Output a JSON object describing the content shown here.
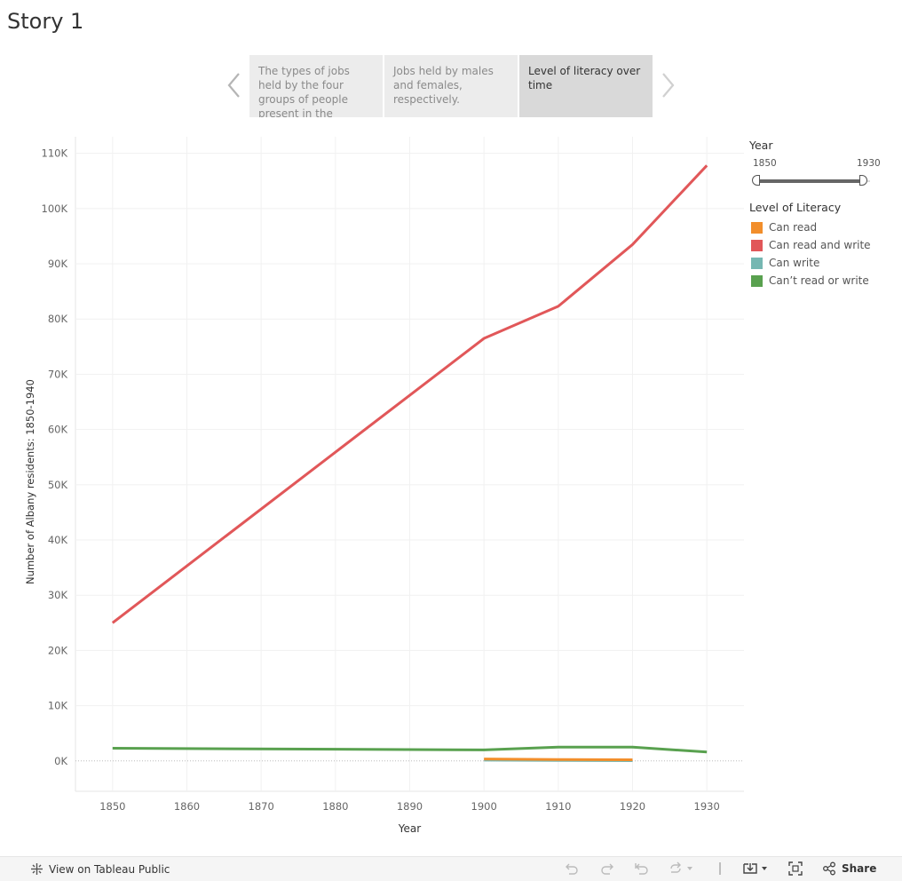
{
  "story": {
    "title": "Story 1"
  },
  "story_points": [
    {
      "label": "The types of jobs held by the four groups of people present in the",
      "active": false
    },
    {
      "label": "Jobs held by males and females, respectively.",
      "active": false
    },
    {
      "label": "Level of literacy over time",
      "active": true
    }
  ],
  "icons": {
    "prev": "chevron-left-icon",
    "next": "chevron-right-icon",
    "tableau": "tableau-logo-icon",
    "undo": "undo-icon",
    "redo": "redo-icon",
    "revert": "revert-icon",
    "refresh": "refresh-icon",
    "download": "download-icon",
    "fullscreen": "fullscreen-icon",
    "share": "share-icon"
  },
  "filters": {
    "year": {
      "title": "Year",
      "min": "1850",
      "max": "1930"
    },
    "literacy": {
      "title": "Level of Literacy",
      "items": [
        {
          "label": "Can read",
          "color": "#f28e2b"
        },
        {
          "label": "Can read and write",
          "color": "#e15759"
        },
        {
          "label": "Can write",
          "color": "#76b7b2"
        },
        {
          "label": "Can’t read or write",
          "color": "#59a14f"
        }
      ]
    }
  },
  "chart_data": {
    "type": "line",
    "xlabel": "Year",
    "ylabel": "Number of Albany residents: 1850-1940",
    "x_ticks": [
      1850,
      1860,
      1870,
      1880,
      1890,
      1900,
      1910,
      1920,
      1930
    ],
    "y_ticks": [
      "0K",
      "10K",
      "20K",
      "30K",
      "40K",
      "50K",
      "60K",
      "70K",
      "80K",
      "90K",
      "100K",
      "110K"
    ],
    "xlim": [
      1845,
      1935
    ],
    "ylim": [
      -5500,
      113000
    ],
    "grid": true,
    "series": [
      {
        "name": "Can read and write",
        "color": "#e15759",
        "points": [
          [
            1850,
            25000
          ],
          [
            1900,
            76500
          ],
          [
            1910,
            82300
          ],
          [
            1920,
            93500
          ],
          [
            1930,
            107800
          ]
        ]
      },
      {
        "name": "Can’t read or write",
        "color": "#59a14f",
        "points": [
          [
            1850,
            2300
          ],
          [
            1900,
            2000
          ],
          [
            1910,
            2500
          ],
          [
            1920,
            2500
          ],
          [
            1930,
            1600
          ]
        ]
      },
      {
        "name": "Can write",
        "color": "#76b7b2",
        "points": [
          [
            1900,
            150
          ],
          [
            1910,
            100
          ],
          [
            1920,
            50
          ]
        ]
      },
      {
        "name": "Can read",
        "color": "#f28e2b",
        "points": [
          [
            1900,
            350
          ],
          [
            1910,
            250
          ],
          [
            1920,
            200
          ]
        ]
      }
    ]
  },
  "footer": {
    "view_label": "View on Tableau Public",
    "share_label": "Share"
  }
}
